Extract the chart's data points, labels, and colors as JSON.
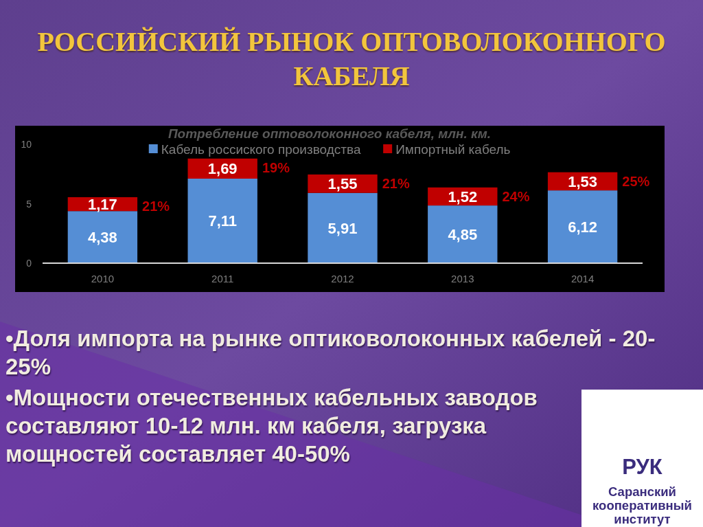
{
  "chart_data": {
    "type": "bar",
    "title": "РОССИЙСКИЙ РЫНОК ОПТОВОЛОКОННОГО КАБЕЛЯ",
    "subtitle": "Потребление оптоволоконного кабеля, млн. км.",
    "categories": [
      "2010",
      "2011",
      "2012",
      "2013",
      "2014"
    ],
    "stacked": true,
    "series": [
      {
        "name": "Кабель россиского производства",
        "color": "#558ed5",
        "values": [
          4.38,
          7.11,
          5.91,
          4.85,
          6.12
        ],
        "value_labels": [
          "4,38",
          "7,11",
          "5,91",
          "4,85",
          "6,12"
        ]
      },
      {
        "name": "Импортный кабель",
        "color": "#c00000",
        "values": [
          1.17,
          1.69,
          1.55,
          1.52,
          1.53
        ],
        "value_labels": [
          "1,17",
          "1,69",
          "1,55",
          "1,52",
          "1,53"
        ]
      }
    ],
    "ylim": [
      0,
      10
    ],
    "yticks": [
      0,
      5,
      10
    ],
    "legend": "top",
    "annotations": [
      {
        "text": "21%",
        "x": "2010",
        "y": 5.55
      },
      {
        "text": "19%",
        "x": "2011",
        "y": 8.8
      },
      {
        "text": "21%",
        "x": "2012",
        "y": 7.46
      },
      {
        "text": "24%",
        "x": "2013",
        "y": 6.37
      },
      {
        "text": "25%",
        "x": "2014",
        "y": 7.65
      },
      "•Доля импорта на рынке оптиковолоконных кабелей - 20-25%",
      "•Мощности отечественных кабельных заводов составляют 10-12 млн. км кабеля, загрузка мощностей составляет 40-50%",
      "РУК",
      "Саранский кооперативный институт"
    ]
  }
}
